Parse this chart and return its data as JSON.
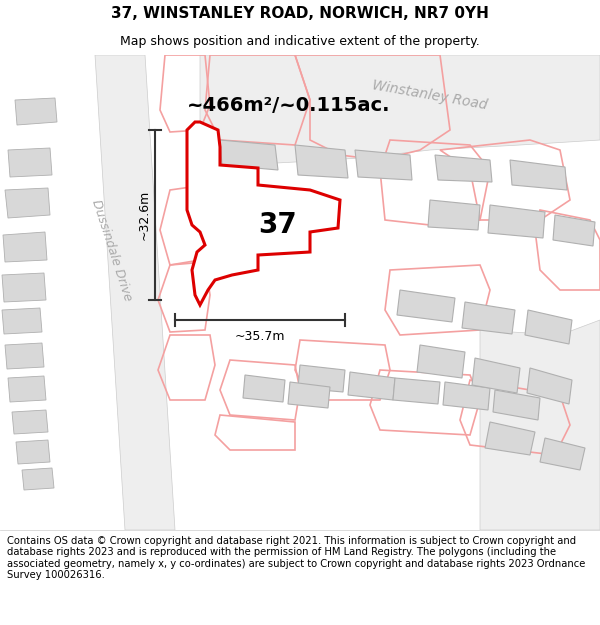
{
  "title_line1": "37, WINSTANLEY ROAD, NORWICH, NR7 0YH",
  "title_line2": "Map shows position and indicative extent of the property.",
  "footer_text": "Contains OS data © Crown copyright and database right 2021. This information is subject to Crown copyright and database rights 2023 and is reproduced with the permission of HM Land Registry. The polygons (including the associated geometry, namely x, y co-ordinates) are subject to Crown copyright and database rights 2023 Ordnance Survey 100026316.",
  "area_text": "~466m²/~0.115ac.",
  "label_37": "37",
  "dim_width": "~35.7m",
  "dim_height": "~32.6m",
  "road_label_winstanley": "Winstanley Road",
  "road_label_dussindale": "Dussindale Drive",
  "bg_color": "#f7f7f7",
  "building_fill": "#d8d8d8",
  "building_stroke": "#b0b0b0",
  "highlight_fill": "#ffffff",
  "highlight_stroke": "#dd0000",
  "neighbor_stroke": "#f4a0a0",
  "road_label_color": "#aaaaaa",
  "dim_line_color": "#333333",
  "title_fontsize": 11,
  "subtitle_fontsize": 9,
  "footer_fontsize": 7.2,
  "area_fontsize": 14,
  "label37_fontsize": 20,
  "dim_fontsize": 9
}
